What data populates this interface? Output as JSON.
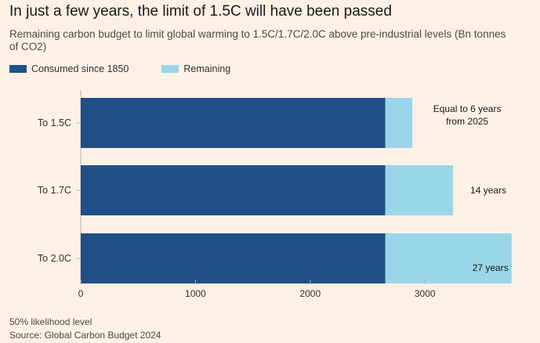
{
  "title": "In just a few years, the limit of 1.5C will have been passed",
  "subtitle": "Remaining carbon budget to limit global warming to 1.5C/1.7C/2.0C above pre-industrial levels (Bn tonnes of CO2)",
  "footnote": "50% likelihood level",
  "source": "Source: Global Carbon Budget 2024",
  "colors": {
    "consumed": "#204f86",
    "remaining": "#99d6ea",
    "background": "#fdf1e6"
  },
  "chart_data": {
    "type": "bar",
    "orientation": "horizontal",
    "stacked": true,
    "categories": [
      "To 1.5C",
      "To 1.7C",
      "To 2.0C"
    ],
    "series": [
      {
        "name": "Consumed since 1850",
        "values": [
          2655,
          2655,
          2655
        ]
      },
      {
        "name": "Remaining",
        "values": [
          235,
          590,
          1100
        ]
      }
    ],
    "annotations": [
      "Equal to 6 years\nfrom 2025",
      "14 years",
      "27 years"
    ],
    "xlim": [
      0,
      3750
    ],
    "xticks": [
      0,
      1000,
      2000,
      3000
    ],
    "legend_position": "top-left",
    "grid": false
  }
}
